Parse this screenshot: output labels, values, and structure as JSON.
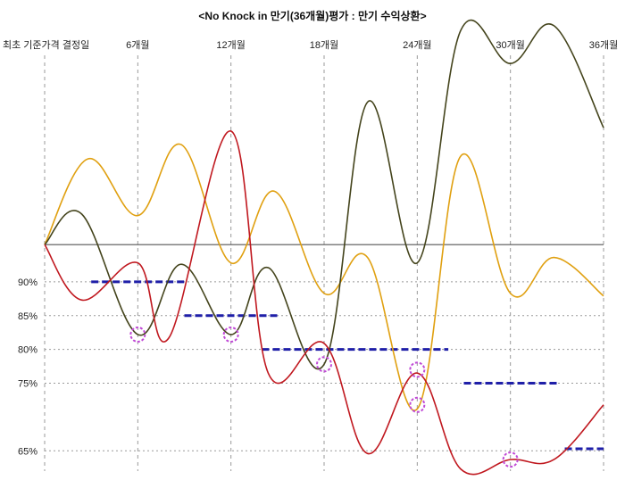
{
  "chart_data": {
    "type": "line",
    "title": "<No Knock in 만기(36개월)평가 : 만기 수익상환>",
    "xlabel": "",
    "ylabel": "",
    "x_labels": [
      "최초 기준가격 결정일",
      "6개월",
      "12개월",
      "18개월",
      "24개월",
      "30개월",
      "36개월"
    ],
    "x_months": [
      0,
      6,
      12,
      18,
      24,
      30,
      36
    ],
    "ylim": [
      62,
      128
    ],
    "y_ticks": [
      {
        "label": "90%",
        "value": 90
      },
      {
        "label": "85%",
        "value": 85
      },
      {
        "label": "80%",
        "value": 80
      },
      {
        "label": "75%",
        "value": 75
      },
      {
        "label": "65%",
        "value": 65
      }
    ],
    "reference_line": 95.5,
    "grid": {
      "horizontal": "dotted",
      "vertical": "dashed"
    },
    "colors": {
      "barrier": "#1f1fa8",
      "marker": "#c04ad6",
      "axis": "#555555",
      "grid": "#9a9a9a"
    },
    "barriers": [
      {
        "from": 3,
        "to": 9,
        "level": 90
      },
      {
        "from": 9,
        "to": 15,
        "level": 85
      },
      {
        "from": 14,
        "to": 26,
        "level": 80
      },
      {
        "from": 27,
        "to": 33,
        "level": 75
      },
      {
        "from": 33.5,
        "to": 36,
        "level": 65.3
      }
    ],
    "markers": [
      {
        "x": 6,
        "y": 82.2
      },
      {
        "x": 12,
        "y": 82.2
      },
      {
        "x": 18,
        "y": 77.8
      },
      {
        "x": 24,
        "y": 77
      },
      {
        "x": 24,
        "y": 71.8
      },
      {
        "x": 30,
        "y": 63.7
      }
    ],
    "series": [
      {
        "color": "#e0a010",
        "x": [
          0,
          2.8,
          6,
          8.8,
          12,
          14.8,
          18,
          20.8,
          24,
          26.8,
          30,
          32.8,
          36
        ],
        "y": [
          95.5,
          108.2,
          99.8,
          110.3,
          92.8,
          103.4,
          88.3,
          93.6,
          71.2,
          108.6,
          88.3,
          93.6,
          87.9
        ]
      },
      {
        "color": "#44441c",
        "x": [
          0,
          2.4,
          6,
          8.8,
          12,
          14.4,
          18,
          20.8,
          24,
          26.8,
          30,
          32.8,
          36
        ],
        "y": [
          95.5,
          100,
          82.2,
          92.6,
          82.2,
          92.1,
          77.8,
          116.6,
          92.8,
          127.2,
          122.3,
          127.9,
          112.8
        ]
      },
      {
        "color": "#c0181f",
        "x": [
          0,
          2.4,
          6,
          8,
          12,
          14.4,
          18,
          20.8,
          24,
          26.8,
          30,
          32.8,
          36
        ],
        "y": [
          95.5,
          87.3,
          92.8,
          81.7,
          112.3,
          76.5,
          80.9,
          64.6,
          76.5,
          62.3,
          63.7,
          63.7,
          71.8
        ]
      }
    ]
  }
}
